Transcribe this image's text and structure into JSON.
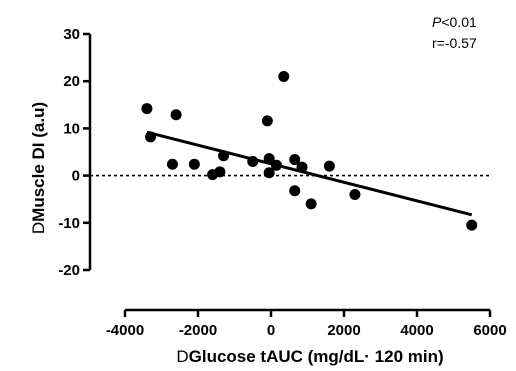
{
  "chart_data": {
    "type": "scatter",
    "title": "",
    "xlabel": "Glucose tAUC (mg/dL· 120 min)",
    "xlabel_delta": "D",
    "ylabel": "Muscle DI (a.u)",
    "ylabel_delta": "D",
    "xlim": [
      -4000,
      6000
    ],
    "ylim": [
      -20,
      30
    ],
    "xticks": [
      "-4000",
      "-2000",
      "0",
      "2000",
      "4000",
      "6000"
    ],
    "yticks": [
      "-20",
      "-10",
      "0",
      "10",
      "20",
      "30"
    ],
    "xtick_values": [
      -4000,
      -2000,
      0,
      2000,
      4000,
      6000
    ],
    "ytick_values": [
      -20,
      -10,
      0,
      10,
      20,
      30
    ],
    "grid": false,
    "reference_line_y": 0,
    "annotations": {
      "p_symbol": "P",
      "p_value": "<0.01",
      "r_value": "r=-0.57"
    },
    "points": [
      {
        "x": -3400,
        "y": 14.2
      },
      {
        "x": -3300,
        "y": 8.2
      },
      {
        "x": -2600,
        "y": 12.9
      },
      {
        "x": -2700,
        "y": 2.4
      },
      {
        "x": -2100,
        "y": 2.4
      },
      {
        "x": -1600,
        "y": 0.2
      },
      {
        "x": -1400,
        "y": 0.8
      },
      {
        "x": -1300,
        "y": 4.2
      },
      {
        "x": -500,
        "y": 3.0
      },
      {
        "x": -100,
        "y": 11.6
      },
      {
        "x": -50,
        "y": 3.6
      },
      {
        "x": -50,
        "y": 0.6
      },
      {
        "x": 150,
        "y": 2.2
      },
      {
        "x": 350,
        "y": 21.0
      },
      {
        "x": 650,
        "y": 3.4
      },
      {
        "x": 650,
        "y": -3.2
      },
      {
        "x": 850,
        "y": 1.8
      },
      {
        "x": 1100,
        "y": -6.0
      },
      {
        "x": 1600,
        "y": 2.0
      },
      {
        "x": 2300,
        "y": -4.0
      },
      {
        "x": 5500,
        "y": -10.5
      }
    ],
    "regression": {
      "x1": -3400,
      "y1": 9.2,
      "x2": 5500,
      "y2": -8.3
    }
  }
}
